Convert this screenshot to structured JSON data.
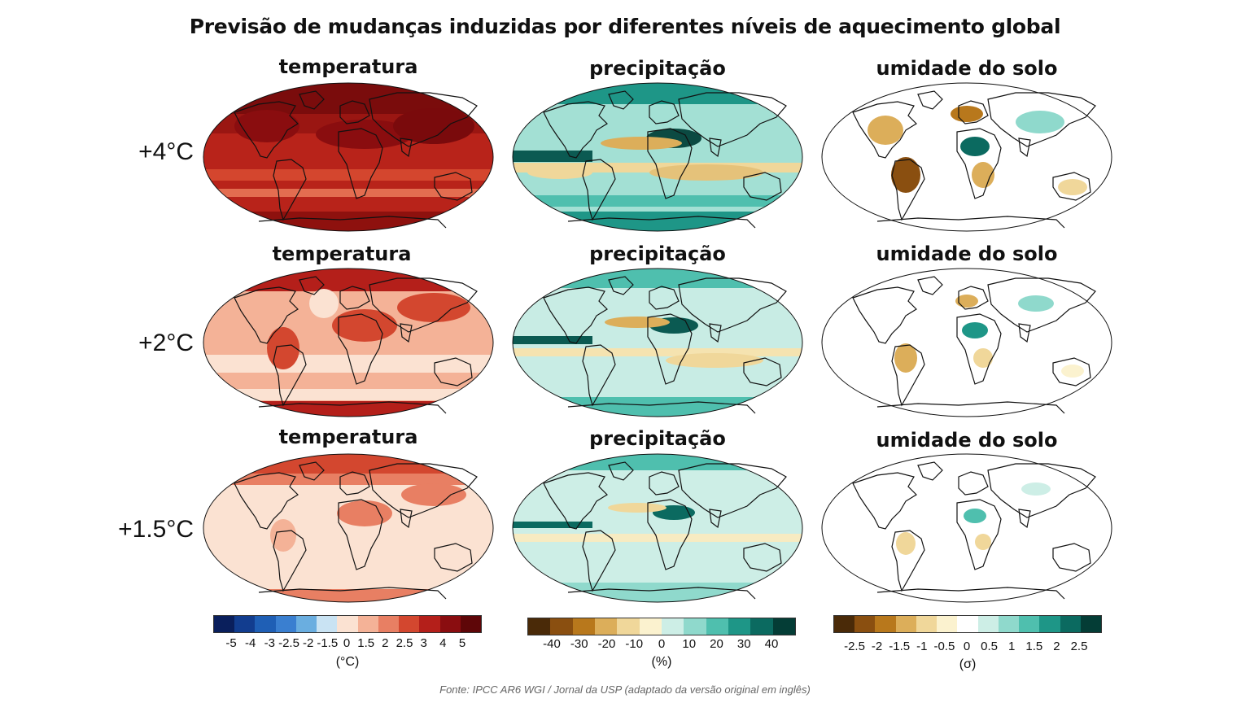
{
  "title": "Previsão de mudanças induzidas por diferentes níveis de aquecimento global",
  "rows": [
    {
      "label": "+4°C",
      "headers": [
        "temperatura",
        "precipitação",
        "umidade do solo"
      ]
    },
    {
      "label": "+2°C",
      "headers": [
        "temperatura",
        "precipitação",
        "umidade do solo"
      ]
    },
    {
      "label": "+1.5°C",
      "headers": [
        "temperatura",
        "precipitação",
        "umidade do solo"
      ]
    }
  ],
  "colorbars": {
    "temperature": {
      "colors": [
        "#0a1f5c",
        "#123d8f",
        "#1f5fb5",
        "#3a7fd0",
        "#6aaee0",
        "#c9e3f3",
        "#fbe2d2",
        "#f4b297",
        "#e87f63",
        "#d3472f",
        "#b41f1a",
        "#8a0d10",
        "#5e0608"
      ],
      "ticks": [
        "-5",
        "-4",
        "-3",
        "-2.5",
        "-2",
        "-1.5",
        "0",
        "1.5",
        "2",
        "2.5",
        "3",
        "4",
        "5"
      ],
      "unit": "(°C)"
    },
    "precipitation": {
      "colors": [
        "#4a2a08",
        "#8a4f10",
        "#b8781c",
        "#dcae5a",
        "#f0d79a",
        "#fbf2cf",
        "#cdeee6",
        "#8fd9cc",
        "#4fbfae",
        "#1e9687",
        "#0b6a60",
        "#043d36"
      ],
      "ticks": [
        "-40",
        "-30",
        "-20",
        "-10",
        "0",
        "10",
        "20",
        "30",
        "40"
      ],
      "unit": "(%)"
    },
    "soil_moisture": {
      "colors": [
        "#4a2a08",
        "#8a4f10",
        "#b8781c",
        "#dcae5a",
        "#f0d79a",
        "#fbf2cf",
        "#ffffff",
        "#cdeee6",
        "#8fd9cc",
        "#4fbfae",
        "#1e9687",
        "#0b6a60",
        "#043d36"
      ],
      "ticks": [
        "-2.5",
        "-2",
        "-1.5",
        "-1",
        "-0.5",
        "0",
        "0.5",
        "1",
        "1.5",
        "2",
        "2.5"
      ],
      "unit": "(σ)"
    }
  },
  "source": "Fonte: IPCC AR6 WGI / Jornal da USP (adaptado da versão original em inglês)"
}
